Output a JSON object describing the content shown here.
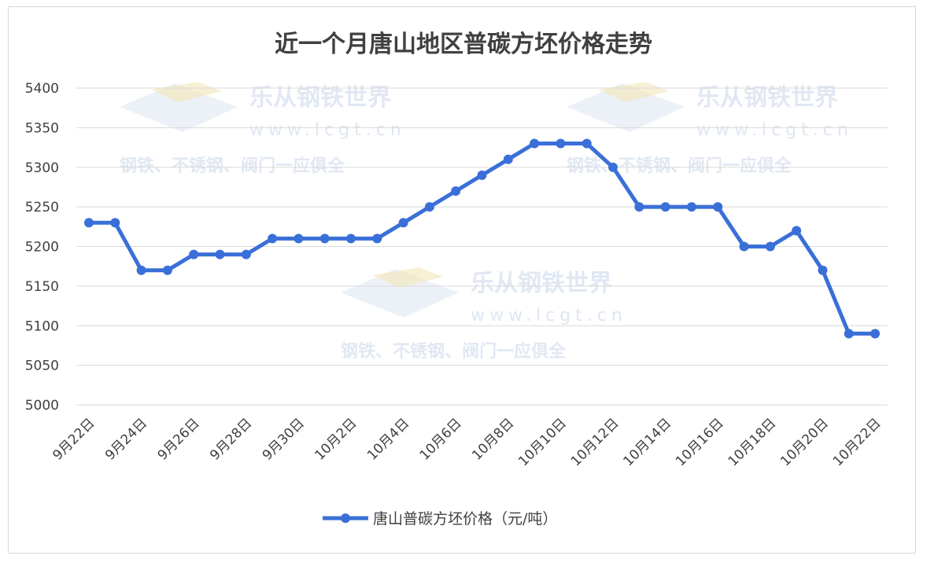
{
  "chart_data": {
    "type": "line",
    "title": "近一个月唐山地区普碳方坯价格走势",
    "xlabel": "",
    "ylabel": "",
    "ylim": [
      5000,
      5400
    ],
    "yticks": [
      5000,
      5050,
      5100,
      5150,
      5200,
      5250,
      5300,
      5350,
      5400
    ],
    "grid": true,
    "legend_position": "bottom",
    "x_tick_labels": [
      "9月22日",
      "9月24日",
      "9月26日",
      "9月28日",
      "9月30日",
      "10月2日",
      "10月4日",
      "10月6日",
      "10月8日",
      "10月10日",
      "10月12日",
      "10月14日",
      "10月16日",
      "10月18日",
      "10月20日",
      "10月22日"
    ],
    "series": [
      {
        "name": "唐山普碳方坯价格（元/吨）",
        "color": "#3a6fd8",
        "values": [
          5230,
          5230,
          5170,
          5170,
          5190,
          5190,
          5190,
          5210,
          5210,
          5210,
          5210,
          5210,
          5230,
          5250,
          5270,
          5290,
          5310,
          5330,
          5330,
          5330,
          5300,
          5250,
          5250,
          5250,
          5250,
          5200,
          5200,
          5220,
          5170,
          5090,
          5090
        ]
      }
    ]
  },
  "watermark": {
    "brand": "乐从钢铁世界",
    "url": "www.lcgt.cn",
    "slogan": "钢铁、不锈钢、阀门一应俱全",
    "color": "#c9d6ea"
  }
}
